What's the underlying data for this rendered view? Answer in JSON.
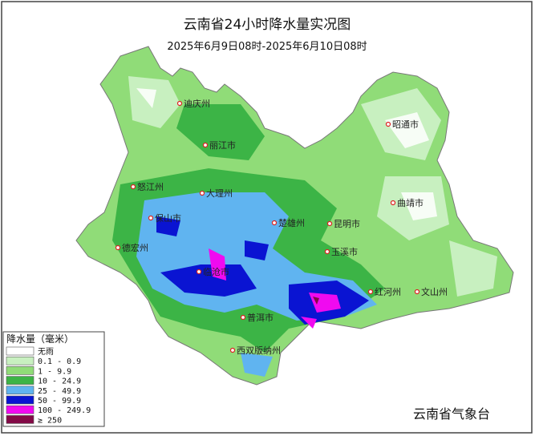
{
  "title": "云南省24小时降水量实况图",
  "subtitle": "2025年6月9日08时-2025年6月10日08时",
  "cities": [
    "迪庆州",
    "丽江市",
    "昭通市",
    "怒江州",
    "大理州",
    "曲靖市",
    "保山市",
    "楚雄州",
    "昆明市",
    "德宏州",
    "玉溪市",
    "临沧市",
    "红河州",
    "文山州",
    "普洱市",
    "西双版纳州"
  ],
  "legend": {
    "title": "降水量（毫米）",
    "items": [
      {
        "label": "无雨",
        "color": "#ffffff"
      },
      {
        "label": "0.1 - 0.9",
        "color": "#c8f0c0"
      },
      {
        "label": "1 - 9.9",
        "color": "#90dc78"
      },
      {
        "label": "10 - 24.9",
        "color": "#3cb446"
      },
      {
        "label": "25 - 49.9",
        "color": "#60b4f0"
      },
      {
        "label": "50 - 99.9",
        "color": "#0a14d2"
      },
      {
        "label": "100 - 249.9",
        "color": "#f00af0"
      },
      {
        "label": "≥ 250",
        "color": "#820a46"
      }
    ]
  },
  "source": "云南省气象台"
}
